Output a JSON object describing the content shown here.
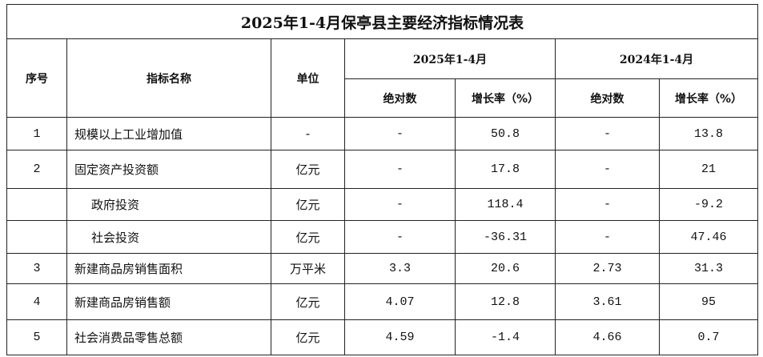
{
  "title": "2025年1-4月保亭县主要经济指标情况表",
  "headers": {
    "seq": "序号",
    "indicator": "指标名称",
    "unit": "单位",
    "period_2025": "2025年1-4月",
    "period_2024": "2024年1-4月",
    "absolute": "绝对数",
    "growth": "增长率（%）"
  },
  "rows": [
    {
      "seq": "1",
      "name": "规模以上工业增加值",
      "unit": "-",
      "abs2025": "-",
      "growth2025": "50.8",
      "abs2024": "-",
      "growth2024": "13.8"
    },
    {
      "seq": "2",
      "name": "固定资产投资额",
      "unit": "亿元",
      "abs2025": "-",
      "growth2025": "17.8",
      "abs2024": "-",
      "growth2024": "21"
    },
    {
      "seq": "",
      "name": "政府投资",
      "unit": "亿元",
      "abs2025": "-",
      "growth2025": "118.4",
      "abs2024": "-",
      "growth2024": "-9.2"
    },
    {
      "seq": "",
      "name": "社会投资",
      "unit": "亿元",
      "abs2025": "-",
      "growth2025": "-36.31",
      "abs2024": "-",
      "growth2024": "47.46"
    },
    {
      "seq": "3",
      "name": "新建商品房销售面积",
      "unit": "万平米",
      "abs2025": "3.3",
      "growth2025": "20.6",
      "abs2024": "2.73",
      "growth2024": "31.3"
    },
    {
      "seq": "4",
      "name": "新建商品房销售额",
      "unit": "亿元",
      "abs2025": "4.07",
      "growth2025": "12.8",
      "abs2024": "3.61",
      "growth2024": "95"
    },
    {
      "seq": "5",
      "name": "社会消费品零售总额",
      "unit": "亿元",
      "abs2025": "4.59",
      "growth2025": "-1.4",
      "abs2024": "4.66",
      "growth2024": "0.7"
    }
  ]
}
